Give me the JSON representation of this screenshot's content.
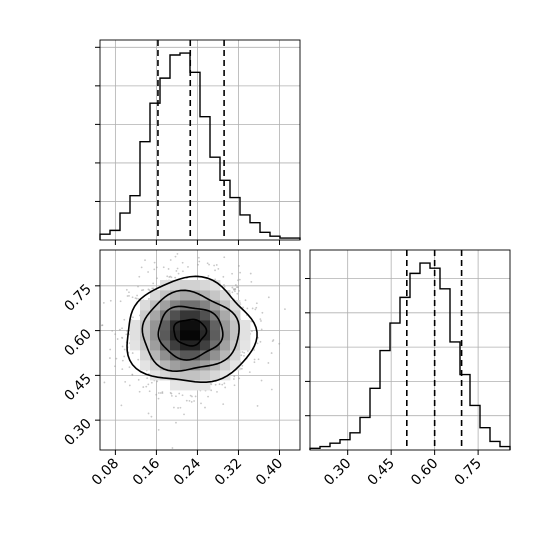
{
  "chart_data": [
    {
      "type": "histogram",
      "panel": "marginal-x",
      "xlim": [
        0.05,
        0.44
      ],
      "grid": true,
      "bin_edges": [
        0.05,
        0.0695,
        0.089,
        0.1085,
        0.128,
        0.1475,
        0.167,
        0.1865,
        0.206,
        0.2255,
        0.245,
        0.2645,
        0.284,
        0.3035,
        0.323,
        0.3425,
        0.362,
        0.3815,
        0.401,
        0.4205,
        0.44
      ],
      "counts": [
        3,
        5,
        14,
        23,
        51,
        71,
        84,
        96,
        97,
        87,
        64,
        43,
        31,
        22,
        13,
        9,
        4,
        2,
        1,
        1
      ],
      "quantiles": [
        0.163,
        0.226,
        0.292
      ],
      "xticks": [
        0.08,
        0.16,
        0.24,
        0.32,
        0.4
      ],
      "xtick_labels_shown": false
    },
    {
      "type": "heatmap",
      "panel": "joint",
      "subtype": "2d-histogram with density contours and scatter",
      "xlim": [
        0.05,
        0.44
      ],
      "ylim": [
        0.2,
        0.87
      ],
      "grid": true,
      "xticks": [
        0.08,
        0.16,
        0.24,
        0.32,
        0.4
      ],
      "xtick_labels": [
        "0.08",
        "0.16",
        "0.24",
        "0.32",
        "0.40"
      ],
      "yticks": [
        0.3,
        0.45,
        0.6,
        0.75
      ],
      "ytick_labels": [
        "0.30",
        "0.45",
        "0.60",
        "0.75"
      ],
      "center": [
        0.225,
        0.595
      ],
      "std": [
        0.056,
        0.092
      ],
      "contour_levels_sigma": [
        0.5,
        1.0,
        1.5,
        2.0
      ]
    },
    {
      "type": "histogram",
      "panel": "marginal-y",
      "xlim": [
        0.17,
        0.86
      ],
      "grid": true,
      "bin_edges": [
        0.17,
        0.2045,
        0.239,
        0.2735,
        0.308,
        0.3425,
        0.377,
        0.4115,
        0.446,
        0.4805,
        0.515,
        0.5495,
        0.584,
        0.6185,
        0.653,
        0.6875,
        0.722,
        0.7565,
        0.791,
        0.8255,
        0.86
      ],
      "counts": [
        1,
        2,
        4,
        6,
        10,
        19,
        36,
        58,
        74,
        89,
        103,
        109,
        106,
        94,
        63,
        44,
        26,
        13,
        5,
        2
      ],
      "quantiles": [
        0.504,
        0.6,
        0.693
      ],
      "xticks": [
        0.3,
        0.45,
        0.6,
        0.75
      ],
      "xtick_labels": [
        "0.30",
        "0.45",
        "0.60",
        "0.75"
      ]
    }
  ]
}
